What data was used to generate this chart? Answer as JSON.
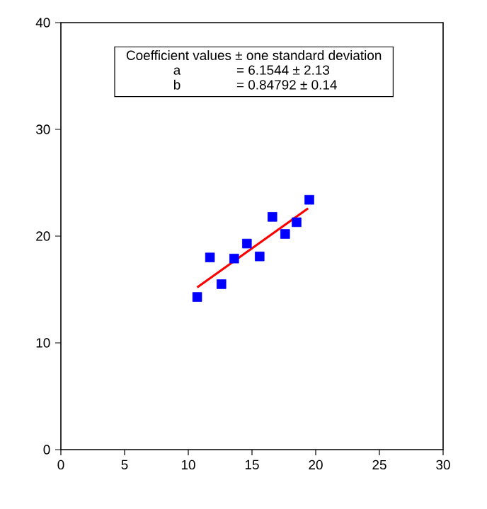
{
  "chart_data": {
    "type": "scatter",
    "annotations": [
      "Coefficient values ± one standard deviation",
      "a",
      "= 6.1544 ± 2.13",
      "b",
      "= 0.84792 ± 0.14"
    ],
    "series": [
      {
        "color": "#0000ff",
        "marker": "square",
        "x": [
          10.7,
          11.7,
          12.6,
          13.6,
          14.6,
          15.6,
          16.6,
          17.6,
          18.5,
          19.5
        ],
        "values": [
          14.3,
          18.0,
          15.5,
          17.9,
          19.3,
          18.1,
          21.8,
          20.2,
          21.3,
          23.4
        ]
      },
      {
        "type": "line",
        "color": "#ff0000",
        "marker": "none",
        "line_style": "solid",
        "x": [
          10.7,
          19.4
        ],
        "values": [
          15.2,
          22.6
        ]
      }
    ],
    "xlim": [
      0,
      30
    ],
    "xticks": [
      0,
      5,
      10,
      15,
      20,
      25,
      30
    ],
    "ylim": [
      0,
      40
    ],
    "yticks": [
      0,
      10,
      20,
      30,
      40
    ],
    "grid": false
  }
}
